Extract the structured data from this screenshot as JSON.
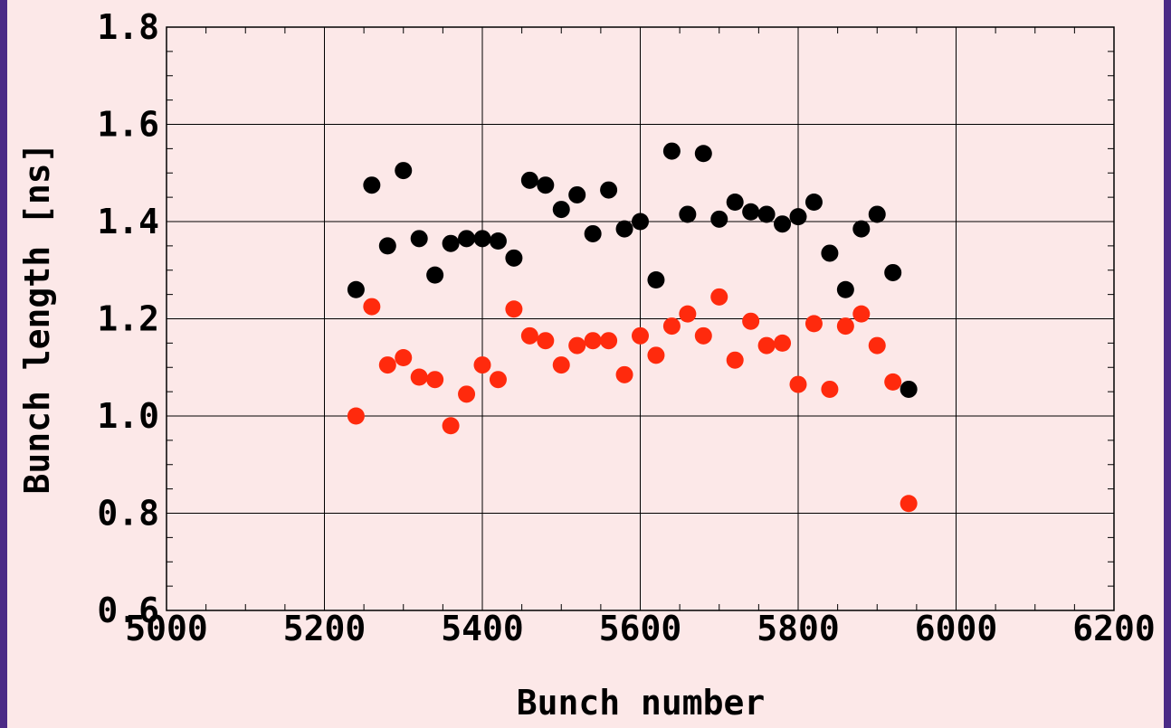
{
  "chart_data": {
    "type": "scatter",
    "title": "",
    "xlabel": "Bunch number",
    "ylabel": "Bunch length [ns]",
    "xlim": [
      5000,
      6200
    ],
    "ylim": [
      0.6,
      1.8
    ],
    "x_ticks": [
      "5000",
      "5200",
      "5400",
      "5600",
      "5800",
      "6000",
      "6200"
    ],
    "y_ticks": [
      "0.6",
      "0.8",
      "1.0",
      "1.2",
      "1.4",
      "1.6",
      "1.8"
    ],
    "grid": true,
    "series": [
      {
        "color": "#000000",
        "points": [
          [
            5240,
            1.26
          ],
          [
            5260,
            1.475
          ],
          [
            5280,
            1.35
          ],
          [
            5300,
            1.505
          ],
          [
            5320,
            1.365
          ],
          [
            5340,
            1.29
          ],
          [
            5360,
            1.355
          ],
          [
            5380,
            1.365
          ],
          [
            5400,
            1.365
          ],
          [
            5420,
            1.36
          ],
          [
            5440,
            1.325
          ],
          [
            5460,
            1.485
          ],
          [
            5480,
            1.475
          ],
          [
            5500,
            1.425
          ],
          [
            5520,
            1.455
          ],
          [
            5540,
            1.375
          ],
          [
            5560,
            1.465
          ],
          [
            5580,
            1.385
          ],
          [
            5600,
            1.4
          ],
          [
            5620,
            1.28
          ],
          [
            5640,
            1.545
          ],
          [
            5660,
            1.415
          ],
          [
            5680,
            1.54
          ],
          [
            5700,
            1.405
          ],
          [
            5720,
            1.44
          ],
          [
            5740,
            1.42
          ],
          [
            5760,
            1.415
          ],
          [
            5780,
            1.395
          ],
          [
            5800,
            1.41
          ],
          [
            5820,
            1.44
          ],
          [
            5840,
            1.335
          ],
          [
            5860,
            1.26
          ],
          [
            5880,
            1.385
          ],
          [
            5900,
            1.415
          ],
          [
            5920,
            1.295
          ],
          [
            5940,
            1.055
          ]
        ]
      },
      {
        "color": "#ff2a0d",
        "points": [
          [
            5240,
            1.0
          ],
          [
            5260,
            1.225
          ],
          [
            5280,
            1.105
          ],
          [
            5300,
            1.12
          ],
          [
            5320,
            1.08
          ],
          [
            5340,
            1.075
          ],
          [
            5360,
            0.98
          ],
          [
            5380,
            1.045
          ],
          [
            5400,
            1.105
          ],
          [
            5420,
            1.075
          ],
          [
            5440,
            1.22
          ],
          [
            5460,
            1.165
          ],
          [
            5480,
            1.155
          ],
          [
            5500,
            1.105
          ],
          [
            5520,
            1.145
          ],
          [
            5540,
            1.155
          ],
          [
            5560,
            1.155
          ],
          [
            5580,
            1.085
          ],
          [
            5600,
            1.165
          ],
          [
            5620,
            1.125
          ],
          [
            5640,
            1.185
          ],
          [
            5660,
            1.21
          ],
          [
            5680,
            1.165
          ],
          [
            5700,
            1.245
          ],
          [
            5720,
            1.115
          ],
          [
            5740,
            1.195
          ],
          [
            5760,
            1.145
          ],
          [
            5780,
            1.15
          ],
          [
            5800,
            1.065
          ],
          [
            5820,
            1.19
          ],
          [
            5840,
            1.055
          ],
          [
            5860,
            1.185
          ],
          [
            5880,
            1.21
          ],
          [
            5900,
            1.145
          ],
          [
            5920,
            1.07
          ],
          [
            5940,
            0.82
          ]
        ]
      }
    ]
  }
}
